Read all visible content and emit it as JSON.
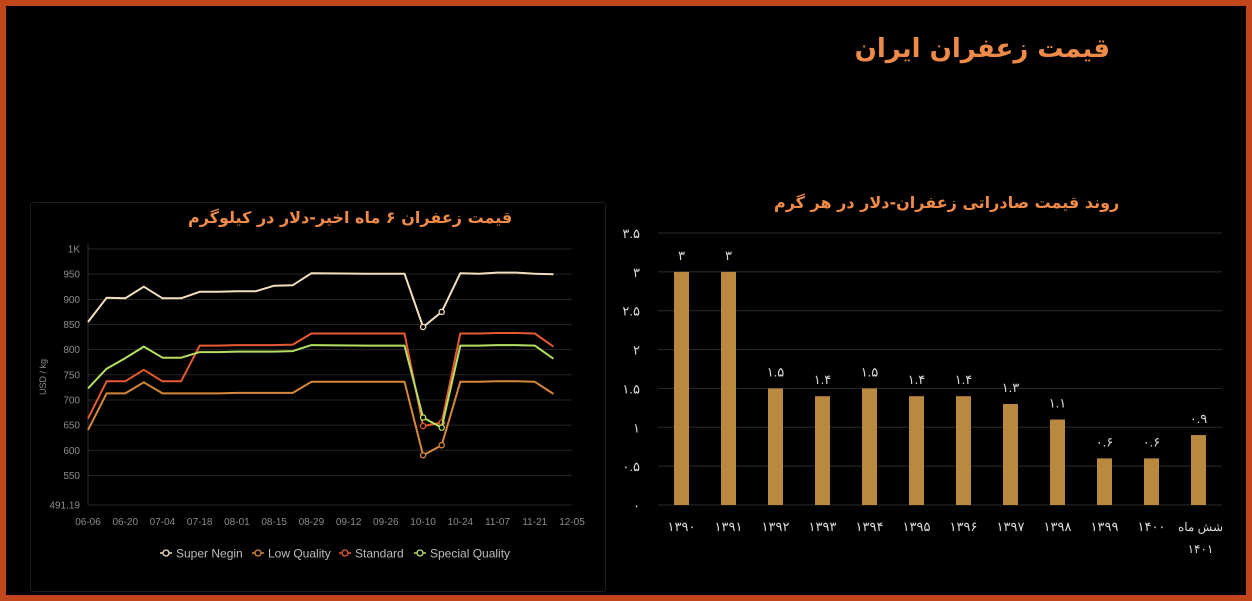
{
  "page": {
    "title": "قیمت زعفران ایران"
  },
  "chart_data": [
    {
      "type": "line",
      "title": "قیمت زعفران ۶ ماه اخیر-دلار در کیلوگرم",
      "ylabel": "USD / kg",
      "ylim": [
        491.19,
        1000
      ],
      "yticks": [
        491.19,
        550,
        600,
        650,
        700,
        750,
        800,
        850,
        900,
        950,
        1000
      ],
      "ytick_labels": [
        "491.19",
        "550",
        "600",
        "650",
        "700",
        "750",
        "800",
        "850",
        "900",
        "950",
        "1K"
      ],
      "xlim": [
        0,
        182
      ],
      "xticks": [
        0,
        14,
        28,
        42,
        56,
        70,
        84,
        98,
        112,
        126,
        140,
        154,
        168,
        182
      ],
      "xtick_labels": [
        "06-06",
        "06-20",
        "07-04",
        "07-18",
        "08-01",
        "08-15",
        "08-29",
        "09-12",
        "09-26",
        "10-10",
        "10-24",
        "11-07",
        "11-21",
        "12-05"
      ],
      "x": [
        0,
        7,
        14,
        21,
        28,
        35,
        42,
        49,
        56,
        63,
        70,
        77,
        84,
        105,
        119,
        126,
        133,
        140,
        147,
        154,
        161,
        168,
        175
      ],
      "markers_at": [
        126,
        133
      ],
      "grid": true,
      "legend": "bottom",
      "series": [
        {
          "name": "Super Negin",
          "color": "#f3dfc0",
          "values": [
            855,
            903,
            902,
            925,
            902,
            902,
            915,
            915,
            916,
            916,
            927,
            928,
            952,
            951,
            951,
            845,
            875,
            952,
            951,
            953,
            953,
            951,
            950
          ]
        },
        {
          "name": "Low Quality",
          "color": "#d6883a",
          "values": [
            640,
            713,
            713,
            735,
            713,
            713,
            713,
            713,
            714,
            714,
            714,
            714,
            736,
            736,
            736,
            590,
            610,
            736,
            736,
            737,
            737,
            736,
            712
          ]
        },
        {
          "name": "Standard",
          "color": "#e65a32",
          "values": [
            663,
            737,
            737,
            760,
            737,
            737,
            808,
            808,
            809,
            809,
            809,
            810,
            832,
            832,
            832,
            648,
            655,
            832,
            832,
            833,
            833,
            832,
            806
          ]
        },
        {
          "name": "Special Quality",
          "color": "#b5e061",
          "values": [
            723,
            762,
            783,
            806,
            784,
            784,
            795,
            795,
            796,
            796,
            796,
            797,
            809,
            808,
            808,
            665,
            645,
            808,
            808,
            809,
            809,
            808,
            782
          ]
        }
      ]
    },
    {
      "type": "bar",
      "title": "روند قیمت صادراتی  زعفران-دلار در هر گرم",
      "categories": [
        "۱۳۹۰",
        "۱۳۹۱",
        "۱۳۹۲",
        "۱۳۹۳",
        "۱۳۹۴",
        "۱۳۹۵",
        "۱۳۹۶",
        "۱۳۹۷",
        "۱۳۹۸",
        "۱۳۹۹",
        "۱۴۰۰",
        "شش ماه ۱۴۰۱"
      ],
      "values": [
        3,
        3,
        1.5,
        1.4,
        1.5,
        1.4,
        1.4,
        1.3,
        1.1,
        0.6,
        0.6,
        0.9
      ],
      "value_labels": [
        "۳",
        "۳",
        "۱.۵",
        "۱.۴",
        "۱.۵",
        "۱.۴",
        "۱.۴",
        "۱.۳",
        "۱.۱",
        "۰.۶",
        "۰.۶",
        "۰.۹"
      ],
      "ylim": [
        0,
        3.5
      ],
      "yticks": [
        0,
        0.5,
        1,
        1.5,
        2,
        2.5,
        3,
        3.5
      ],
      "ytick_labels": [
        "۰",
        "۰.۵",
        "۱",
        "۱.۵",
        "۲",
        "۲.۵",
        "۳",
        "۳.۵"
      ],
      "bar_color": "#b8893f",
      "grid": true
    }
  ]
}
